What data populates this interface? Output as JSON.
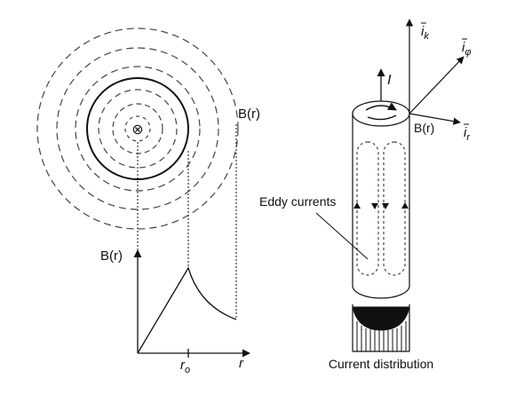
{
  "left_figure": {
    "field_label_curve": "B(r)",
    "axis_label_y": "B(r)",
    "axis_label_x": "r",
    "tick_label_radius": "r",
    "tick_label_radius_sub": "o",
    "center_symbol": "⊗"
  },
  "right_figure": {
    "current_label": "I",
    "field_label": "B(r)",
    "eddy_label": "Eddy currents",
    "distribution_label": "Current distribution",
    "unit_vectors": {
      "k": {
        "base": "i",
        "sub": "k"
      },
      "phi": {
        "base": "i",
        "sub": "φ"
      },
      "r": {
        "base": "i",
        "sub": "r"
      }
    }
  },
  "colors": {
    "line": "#111111",
    "dashed": "#444444"
  }
}
